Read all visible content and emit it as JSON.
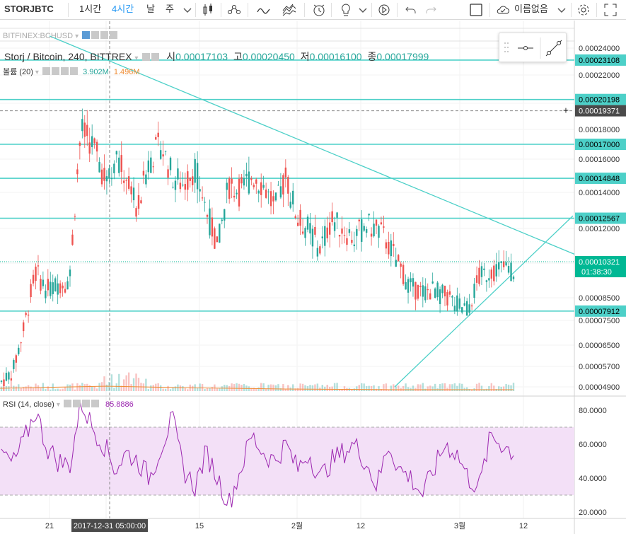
{
  "toolbar": {
    "symbol": "STORJBTC",
    "intervals": [
      "1시간",
      "4시간",
      "날",
      "주"
    ],
    "active_interval": "4시간",
    "user": "이름없음",
    "icons": [
      "chevron-down-icon",
      "candles-icon",
      "indicators-icon",
      "line-chart-icon",
      "compare-icon",
      "alert-icon",
      "idea-icon",
      "replay-icon",
      "undo-icon",
      "redo-icon",
      "fullscreen-box-icon",
      "cloud-icon",
      "gear-icon",
      "expand-icon"
    ]
  },
  "overlay_symbol": "BITFINEX:BCHUSD",
  "main_legend": {
    "title": "Storj / Bitcoin, 240, BITTREX",
    "o_label": "시",
    "o": "0.00017103",
    "h_label": "고",
    "h": "0.00020450",
    "l_label": "저",
    "l": "0.00016100",
    "c_label": "종",
    "c": "0.00017999"
  },
  "volume_legend": {
    "title": "볼륨 (20)",
    "v1": "3.902M",
    "v2": "1.496M"
  },
  "rsi_legend": {
    "title": "RSI (14, close)",
    "value": "85.8886"
  },
  "crosshair": {
    "time_label": "2017-12-31 05:00:00",
    "price_label": "0.00019371"
  },
  "countdown": "01:38:30",
  "colors": {
    "up": "#26a69a",
    "down": "#ef5350",
    "level": "#4dd0c8",
    "rsi": "#9c27b0",
    "rsi_band": "#f3e0f7",
    "current": "#00b894"
  },
  "chart_data": [
    {
      "type": "candlestick",
      "title": "Storj / Bitcoin, 240, BITTREX",
      "y_ticks": [
        "0.00024000",
        "0.00022000",
        "0.00018000",
        "0.00016000",
        "0.00014000",
        "0.00012000",
        "0.00008500",
        "0.00007500",
        "0.00006500",
        "0.00005700",
        "0.00004900"
      ],
      "ylim": [
        4.9e-05,
        0.00024
      ],
      "x_ticks": [
        "21",
        "15",
        "2월",
        "12",
        "3월",
        "12"
      ],
      "horizontal_levels": [
        "0.00023108",
        "0.00020198",
        "0.00017000",
        "0.00014848",
        "0.00012567",
        "0.00007912"
      ],
      "current_price": "0.00010321",
      "trendlines": [
        {
          "from": "0.000249",
          "to": "0.000107"
        },
        {
          "from": "0.000049",
          "to": "0.000127"
        }
      ],
      "close_series": [
        5.1e-05,
        5.5e-05,
        7.2e-05,
        9.8e-05,
        8.9e-05,
        9.2e-05,
        9.4e-05,
        0.00018,
        0.00017,
        0.00015,
        0.00016,
        0.00015,
        0.00013,
        0.00016,
        0.00017,
        0.00015,
        0.000145,
        0.000155,
        0.00013,
        0.00011,
        0.000145,
        0.00014,
        0.00015,
        0.000145,
        0.00013,
        0.00015,
        0.000125,
        0.00012,
        0.00011,
        0.000125,
        0.00012,
        0.000115,
        0.000122,
        0.00012,
        0.000112,
        0.0001,
        9e-05,
        8.8e-05,
        8.9e-05,
        8.6e-05,
        8.2e-05,
        8e-05,
        9.5e-05,
        9.9e-05,
        0.0001,
        9.9e-05
      ]
    },
    {
      "type": "line",
      "title": "RSI (14, close)",
      "y_ticks": [
        "80.0000",
        "60.0000",
        "40.0000",
        "20.0000"
      ],
      "ylim": [
        18,
        88
      ],
      "band": [
        30,
        70
      ],
      "values": [
        55,
        48,
        62,
        80,
        58,
        50,
        47,
        85,
        70,
        60,
        45,
        55,
        50,
        40,
        58,
        75,
        45,
        35,
        55,
        40,
        25,
        45,
        65,
        55,
        50,
        60,
        45,
        55,
        40,
        50,
        55,
        60,
        50,
        35,
        60,
        45,
        40,
        30,
        45,
        60,
        55,
        40,
        35,
        65,
        60,
        55
      ]
    }
  ]
}
